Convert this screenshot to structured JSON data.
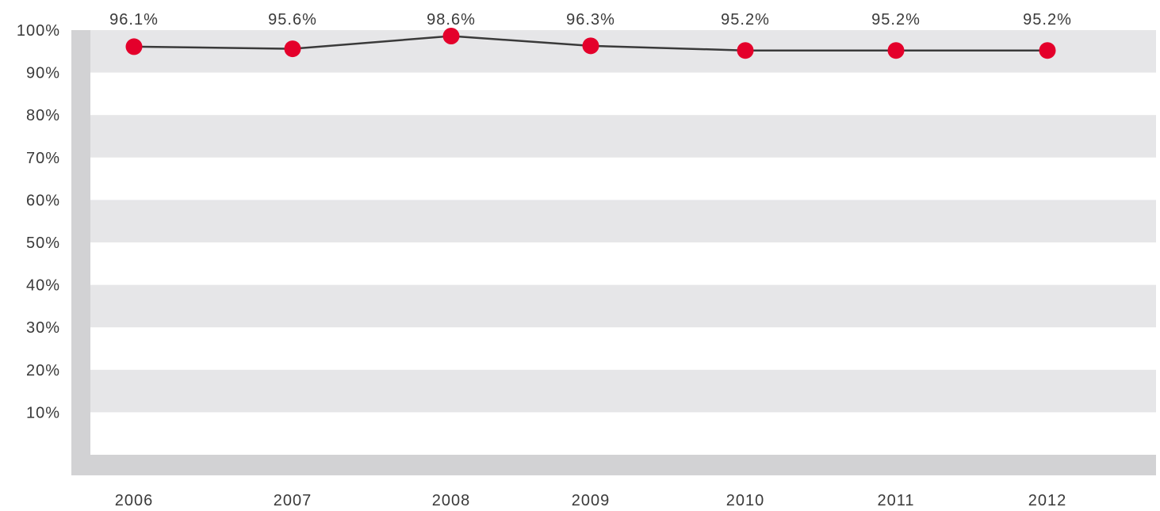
{
  "chart_data": {
    "type": "line",
    "categories": [
      "2006",
      "2007",
      "2008",
      "2009",
      "2010",
      "2011",
      "2012"
    ],
    "series": [
      {
        "values": [
          96.1,
          95.6,
          98.6,
          96.3,
          95.2,
          95.2,
          95.2
        ],
        "data_labels": [
          "96.1%",
          "95.6%",
          "98.6%",
          "96.3%",
          "95.2%",
          "95.2%",
          "95.2%"
        ]
      }
    ],
    "y_ticks": [
      10,
      20,
      30,
      40,
      50,
      60,
      70,
      80,
      90,
      100
    ],
    "y_tick_labels": [
      "10%",
      "20%",
      "30%",
      "40%",
      "50%",
      "60%",
      "70%",
      "80%",
      "90%",
      "100%"
    ],
    "ylim": [
      0,
      100
    ],
    "grid": true,
    "title": "",
    "xlabel": "",
    "ylabel": "",
    "colors": {
      "marker": "#e4002b",
      "line": "#3a3a3a",
      "band": "#e6e6e8",
      "axis_frame": "#d2d2d4",
      "text": "#3a3a3a"
    }
  }
}
